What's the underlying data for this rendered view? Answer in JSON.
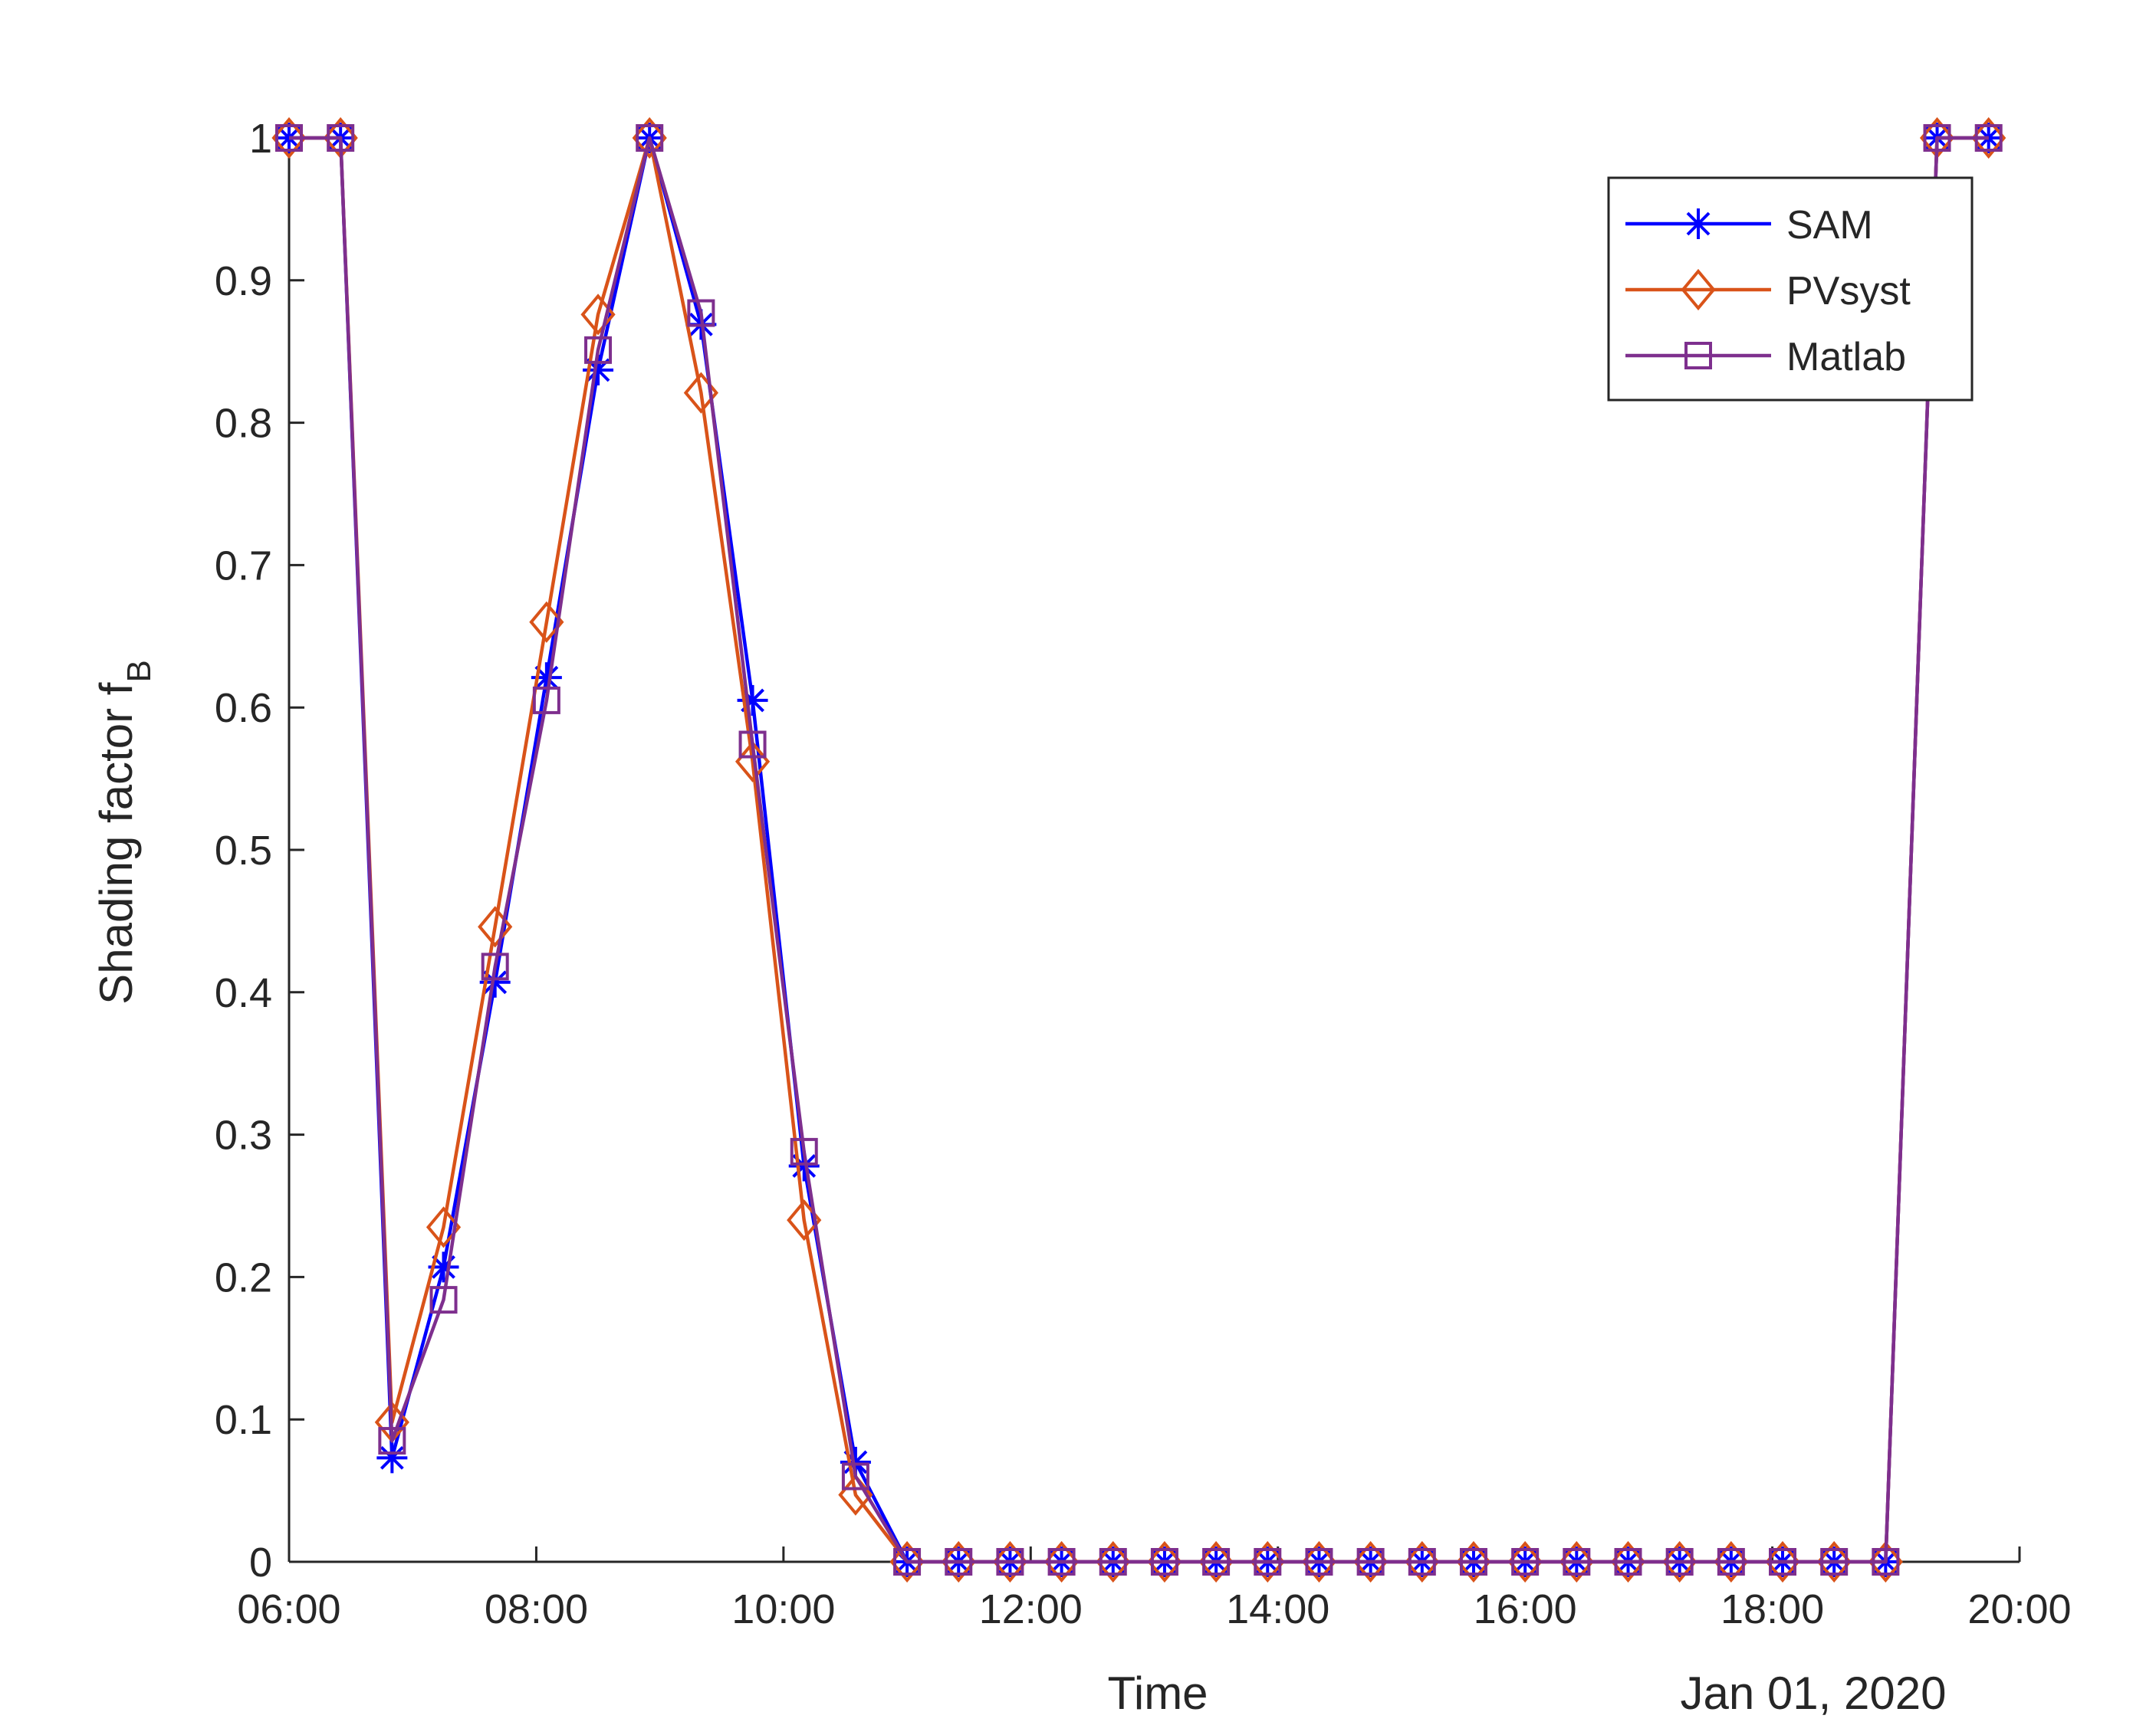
{
  "chart_data": {
    "type": "line",
    "xlabel": "Time",
    "ylabel": "Shading factor f",
    "ylabel_subscript": "B",
    "date_label": "Jan 01, 2020",
    "xlim": [
      "06:00",
      "20:00"
    ],
    "ylim": [
      0,
      1
    ],
    "x_ticks": [
      "06:00",
      "08:00",
      "10:00",
      "12:00",
      "14:00",
      "16:00",
      "18:00",
      "20:00"
    ],
    "y_ticks": [
      "0",
      "0.1",
      "0.2",
      "0.3",
      "0.4",
      "0.5",
      "0.6",
      "0.7",
      "0.8",
      "0.9",
      "1"
    ],
    "grid": false,
    "legend_position": "top-right",
    "x": [
      "06:00",
      "06:25",
      "06:50",
      "07:15",
      "07:40",
      "08:05",
      "08:30",
      "08:55",
      "09:20",
      "09:45",
      "10:10",
      "10:35",
      "11:00",
      "11:25",
      "11:50",
      "12:15",
      "12:40",
      "13:05",
      "13:30",
      "13:55",
      "14:20",
      "14:45",
      "15:10",
      "15:35",
      "16:00",
      "16:25",
      "16:50",
      "17:15",
      "17:40",
      "18:05",
      "18:30",
      "18:55",
      "19:20",
      "19:45"
    ],
    "series": [
      {
        "name": "SAM",
        "color": "#0000ff",
        "marker": "asterisk",
        "values": [
          1,
          1,
          0.073,
          0.207,
          0.407,
          0.621,
          0.837,
          1,
          0.869,
          0.605,
          0.278,
          0.07,
          0,
          0,
          0,
          0,
          0,
          0,
          0,
          0,
          0,
          0,
          0,
          0,
          0,
          0,
          0,
          0,
          0,
          0,
          0,
          0,
          1,
          1
        ]
      },
      {
        "name": "PVsyst",
        "color": "#d95319",
        "marker": "diamond",
        "values": [
          1,
          1,
          0.098,
          0.235,
          0.446,
          0.66,
          0.876,
          1,
          0.821,
          0.562,
          0.24,
          0.047,
          0,
          0,
          0,
          0,
          0,
          0,
          0,
          0,
          0,
          0,
          0,
          0,
          0,
          0,
          0,
          0,
          0,
          0,
          0,
          0,
          1,
          1
        ]
      },
      {
        "name": "Matlab",
        "color": "#7e2f8e",
        "marker": "square",
        "values": [
          1,
          1,
          0.085,
          0.184,
          0.418,
          0.605,
          0.851,
          1,
          0.877,
          0.574,
          0.288,
          0.06,
          0,
          0,
          0,
          0,
          0,
          0,
          0,
          0,
          0,
          0,
          0,
          0,
          0,
          0,
          0,
          0,
          0,
          0,
          0,
          0,
          1,
          1
        ]
      }
    ]
  }
}
